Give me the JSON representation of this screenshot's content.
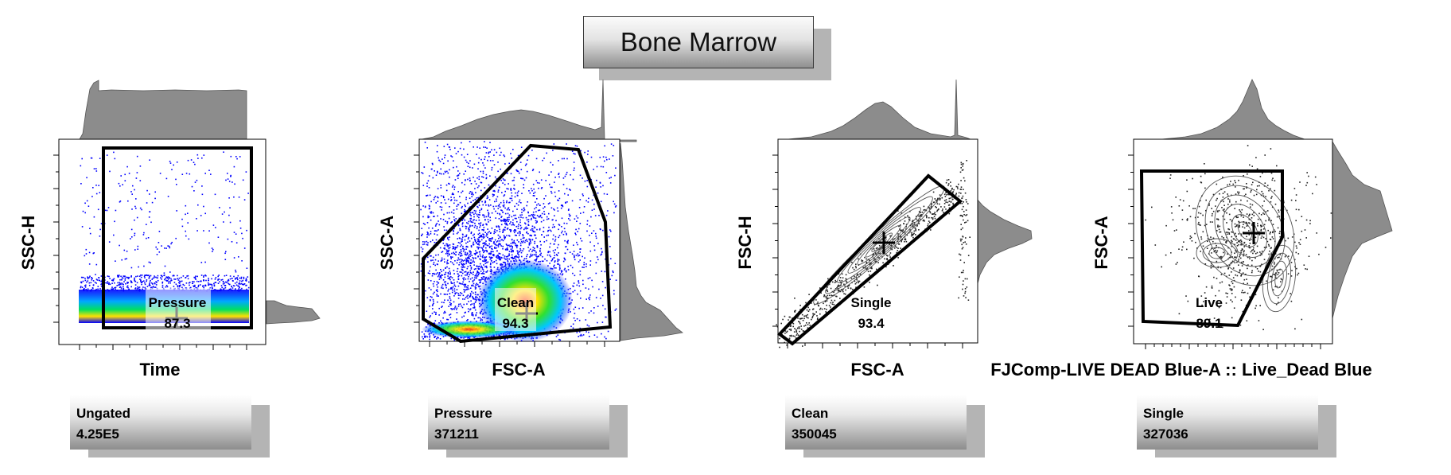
{
  "title": "Bone Marrow",
  "panels": [
    {
      "id": "p1",
      "x_label": "Time",
      "y_label": "SSC-H",
      "gate": {
        "name": "Pressure",
        "value": "87.3"
      },
      "parent": {
        "name": "Ungated",
        "count": "4.25E5"
      }
    },
    {
      "id": "p2",
      "x_label": "FSC-A",
      "y_label": "SSC-A",
      "gate": {
        "name": "Clean",
        "value": "94.3"
      },
      "parent": {
        "name": "Pressure",
        "count": "371211"
      }
    },
    {
      "id": "p3",
      "x_label": "FSC-A",
      "y_label": "FSC-H",
      "gate": {
        "name": "Single",
        "value": "93.4"
      },
      "parent": {
        "name": "Clean",
        "count": "350045"
      }
    },
    {
      "id": "p4",
      "x_label": "FJComp-LIVE DEAD Blue-A :: Live_Dead Blue",
      "y_label": "FSC-A",
      "gate": {
        "name": "Live",
        "value": "89.1"
      },
      "parent": {
        "name": "Single",
        "count": "327036"
      }
    }
  ],
  "chart_data": [
    {
      "type": "scatter",
      "xlabel": "Time",
      "ylabel": "SSC-H",
      "gate": "Pressure",
      "gate_percent": 87.3
    },
    {
      "type": "scatter",
      "xlabel": "FSC-A",
      "ylabel": "SSC-A",
      "gate": "Clean",
      "gate_percent": 94.3
    },
    {
      "type": "scatter",
      "xlabel": "FSC-A",
      "ylabel": "FSC-H",
      "gate": "Single",
      "gate_percent": 93.4
    },
    {
      "type": "scatter",
      "xlabel": "FJComp-LIVE DEAD Blue-A :: Live_Dead Blue",
      "ylabel": "FSC-A",
      "gate": "Live",
      "gate_percent": 89.1
    }
  ],
  "colors": {
    "density_low": "#0000ff",
    "density_mid": "#00e000",
    "density_high": "#ff2000",
    "histogram_fill": "#8c8c8c",
    "gate_stroke": "#000000"
  }
}
